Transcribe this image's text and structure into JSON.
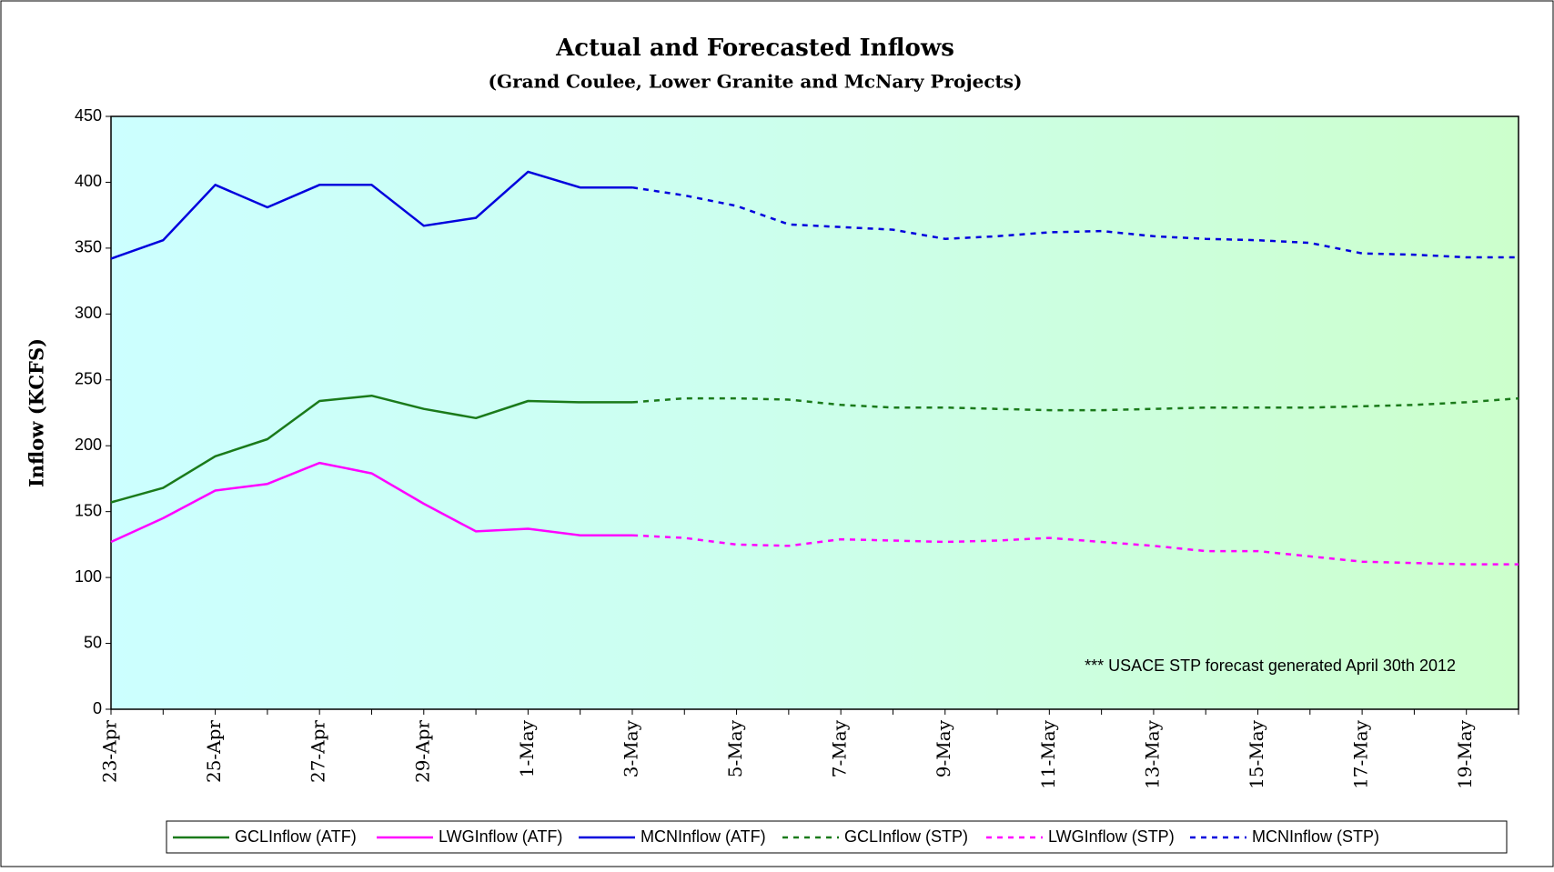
{
  "chart_data": {
    "type": "line",
    "title": "Actual and Forecasted Inflows",
    "subtitle": "(Grand Coulee, Lower Granite and McNary Projects)",
    "y_label": "Inflow (KCFS)",
    "annotation": "*** USACE STP forecast generated April 30th 2012",
    "categories": [
      "23-Apr",
      null,
      "25-Apr",
      null,
      "27-Apr",
      null,
      "29-Apr",
      null,
      "1-May",
      null,
      "3-May",
      null,
      "5-May",
      null,
      "7-May",
      null,
      "9-May",
      null,
      "11-May",
      null,
      "13-May",
      null,
      "15-May",
      null,
      "17-May",
      null,
      "19-May",
      null
    ],
    "ylim": [
      0,
      450
    ],
    "yticks": [
      0,
      50,
      100,
      150,
      200,
      250,
      300,
      350,
      400,
      450
    ],
    "legend": "bottom",
    "series": [
      {
        "name": "GCLInflow (ATF)",
        "color": "#1a7a1a",
        "dashed": false,
        "values": [
          157,
          168,
          192,
          205,
          234,
          238,
          228,
          221,
          234,
          233,
          233,
          null,
          null,
          null,
          null,
          null,
          null,
          null,
          null,
          null,
          null,
          null,
          null,
          null,
          null,
          null,
          null,
          null
        ]
      },
      {
        "name": "LWGInflow (ATF)",
        "color": "#ff00ff",
        "dashed": false,
        "values": [
          127,
          145,
          166,
          171,
          187,
          179,
          156,
          135,
          137,
          132,
          132,
          null,
          null,
          null,
          null,
          null,
          null,
          null,
          null,
          null,
          null,
          null,
          null,
          null,
          null,
          null,
          null,
          null
        ]
      },
      {
        "name": "MCNInflow (ATF)",
        "color": "#0000dd",
        "dashed": false,
        "values": [
          342,
          356,
          398,
          381,
          398,
          398,
          367,
          373,
          408,
          396,
          396,
          null,
          null,
          null,
          null,
          null,
          null,
          null,
          null,
          null,
          null,
          null,
          null,
          null,
          null,
          null,
          null,
          null
        ]
      },
      {
        "name": "GCLInflow (STP)",
        "color": "#1a7a1a",
        "dashed": true,
        "values": [
          null,
          null,
          null,
          null,
          null,
          null,
          null,
          null,
          null,
          null,
          233,
          236,
          236,
          235,
          231,
          229,
          229,
          228,
          227,
          227,
          228,
          229,
          229,
          229,
          230,
          231,
          233,
          236
        ]
      },
      {
        "name": "LWGInflow (STP)",
        "color": "#ff00ff",
        "dashed": true,
        "values": [
          null,
          null,
          null,
          null,
          null,
          null,
          null,
          null,
          null,
          null,
          132,
          130,
          125,
          124,
          129,
          128,
          127,
          128,
          130,
          127,
          124,
          120,
          120,
          116,
          112,
          111,
          110,
          110
        ]
      },
      {
        "name": "MCNInflow (STP)",
        "color": "#0000dd",
        "dashed": true,
        "values": [
          null,
          null,
          null,
          null,
          null,
          null,
          null,
          null,
          null,
          null,
          396,
          390,
          382,
          368,
          366,
          364,
          357,
          359,
          362,
          363,
          359,
          357,
          356,
          354,
          346,
          345,
          343,
          343
        ]
      }
    ]
  }
}
